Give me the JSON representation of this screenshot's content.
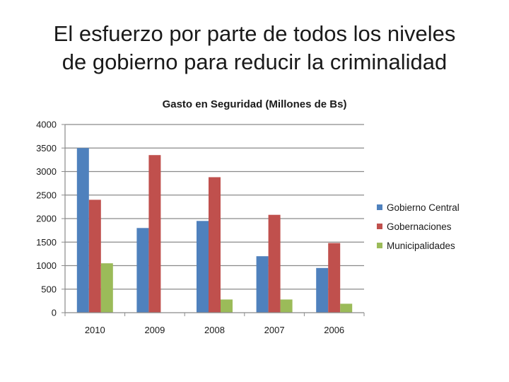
{
  "slide": {
    "title_line1": "El esfuerzo por parte de todos los niveles",
    "title_line2": "de gobierno para reducir la criminalidad"
  },
  "chart_data": {
    "type": "bar",
    "title": "Gasto en Seguridad (Millones de Bs)",
    "xlabel": "",
    "ylabel": "",
    "categories": [
      "2010",
      "2009",
      "2008",
      "2007",
      "2006"
    ],
    "series": [
      {
        "name": "Gobierno Central",
        "color": "#4F81BD",
        "values": [
          3500,
          1800,
          1950,
          1200,
          950
        ]
      },
      {
        "name": "Gobernaciones",
        "color": "#C0504D",
        "values": [
          2400,
          3350,
          2880,
          2080,
          1480
        ]
      },
      {
        "name": "Municipalidades",
        "color": "#9BBB59",
        "values": [
          1050,
          0,
          280,
          280,
          190
        ]
      }
    ],
    "ylim": [
      0,
      4000
    ],
    "yticks": [
      0,
      500,
      1000,
      1500,
      2000,
      2500,
      3000,
      3500,
      4000
    ],
    "grid": true,
    "legend": "right"
  }
}
